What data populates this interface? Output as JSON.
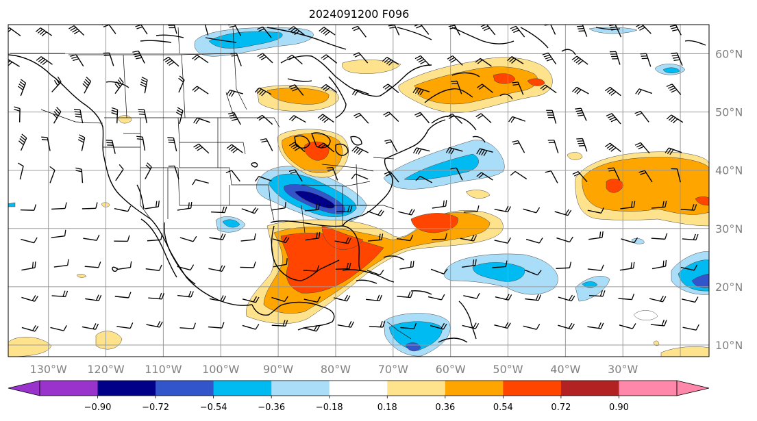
{
  "title": "2024091200 F096",
  "map": {
    "lon_range": [
      -137,
      -15
    ],
    "lat_range": [
      8,
      65
    ],
    "grid_lons": [
      -130,
      -120,
      -110,
      -100,
      -90,
      -80,
      -70,
      -60,
      -50,
      -40,
      -30,
      -20
    ],
    "grid_lats": [
      10,
      20,
      30,
      40,
      50,
      60
    ],
    "lat_labels": [
      "10°N",
      "20°N",
      "30°N",
      "40°N",
      "50°N",
      "60°N"
    ],
    "lon_labels": [
      "130°W",
      "120°W",
      "110°W",
      "100°W",
      "90°W",
      "80°W",
      "70°W",
      "60°W",
      "50°W",
      "40°W",
      "30°W"
    ],
    "features": {
      "anomaly_regions": [
        {
          "name": "central-us-negative-core",
          "sign": "negative",
          "center": [
            -89,
            35.5
          ],
          "value": -0.8
        },
        {
          "name": "great-lakes-positive",
          "sign": "positive",
          "center": [
            -88,
            44
          ],
          "value": 0.6
        },
        {
          "name": "gulf-mexico-positive-core",
          "sign": "positive",
          "center": [
            -88,
            25
          ],
          "value": 0.65
        },
        {
          "name": "southeast-coast-positive",
          "sign": "positive",
          "center": [
            -67,
            30
          ],
          "value": 0.6
        },
        {
          "name": "labrador-positive",
          "sign": "positive",
          "center": [
            -60,
            55
          ],
          "value": 0.5
        },
        {
          "name": "east-atlantic-positive",
          "sign": "positive",
          "center": [
            -33,
            37
          ],
          "value": 0.6
        },
        {
          "name": "canada-north-negative",
          "sign": "negative",
          "center": [
            -104,
            62
          ],
          "value": -0.4
        },
        {
          "name": "atlantic-mid-negative",
          "sign": "negative",
          "center": [
            -66,
            41
          ],
          "value": -0.35
        },
        {
          "name": "atlantic-subtropic-negative",
          "sign": "negative",
          "center": [
            -56,
            21
          ],
          "value": -0.4
        },
        {
          "name": "caribbean-south-negative",
          "sign": "negative",
          "center": [
            -72,
            11
          ],
          "value": -0.45
        },
        {
          "name": "far-east-atlantic-negative",
          "sign": "negative",
          "center": [
            -17,
            21
          ],
          "value": -0.55
        }
      ]
    }
  },
  "colorbar": {
    "labels": [
      "−0.90",
      "−0.72",
      "−0.54",
      "−0.36",
      "−0.18",
      "0.18",
      "0.36",
      "0.54",
      "0.72",
      "0.90"
    ],
    "colors": [
      "#9933cc",
      "#000088",
      "#3355cc",
      "#00bbf2",
      "#aaddf8",
      "#ffffff",
      "#ffe38c",
      "#ffa500",
      "#ff4500",
      "#b22222",
      "#ff88aa",
      "#ff88aa"
    ]
  }
}
